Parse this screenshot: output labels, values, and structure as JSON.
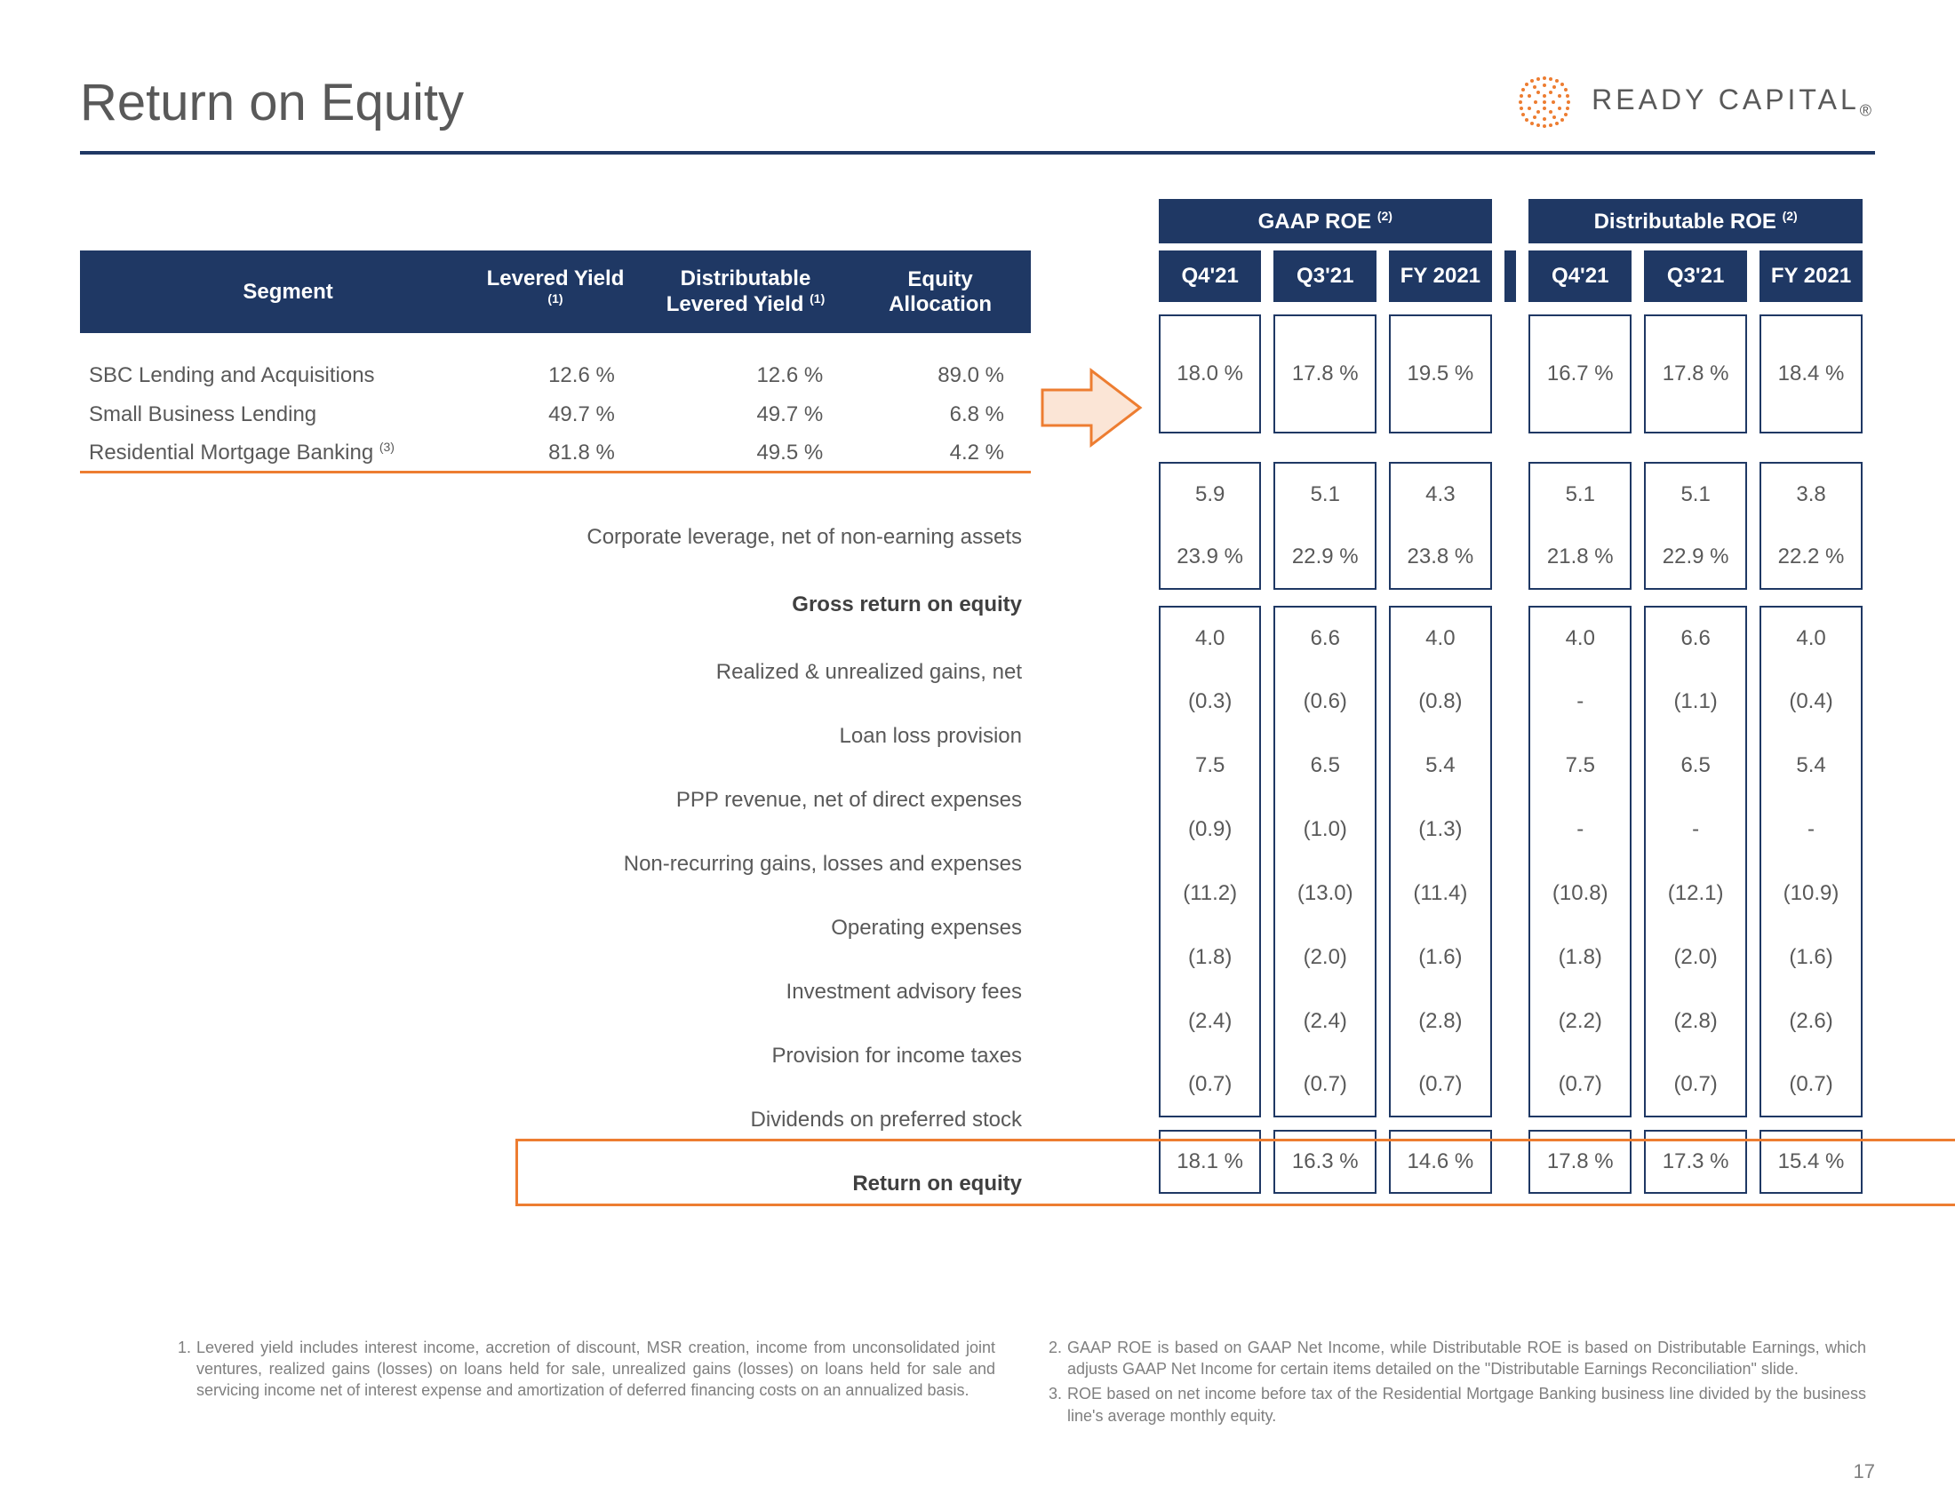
{
  "title": "Return on Equity",
  "logo_text": "READY CAPITAL",
  "logo_color": "#ed7d31",
  "page_number": "17",
  "left_headers": {
    "segment": "Segment",
    "lev_yield": "Levered Yield",
    "dist_lev_yield": "Distributable Levered Yield",
    "eq_alloc": "Equity Allocation",
    "sup1": "(1)"
  },
  "segments": [
    {
      "label": "SBC Lending and Acquisitions",
      "lev": "12.6 %",
      "dlev": "12.6 %",
      "eq": "89.0 %"
    },
    {
      "label": "Small Business Lending",
      "lev": "49.7 %",
      "dlev": "49.7 %",
      "eq": "6.8 %"
    },
    {
      "label": "Residential Mortgage Banking",
      "sup": "(3)",
      "lev": "81.8 %",
      "dlev": "49.5 %",
      "eq": "4.2 %"
    }
  ],
  "lines": [
    {
      "label": "Corporate leverage, net of non-earning assets",
      "bold": false
    },
    {
      "label": "Gross return on equity",
      "bold": true
    },
    {
      "label": "Realized & unrealized gains, net",
      "bold": false
    },
    {
      "label": "Loan loss provision",
      "bold": false
    },
    {
      "label": "PPP revenue, net of direct expenses",
      "bold": false
    },
    {
      "label": "Non-recurring gains, losses and expenses",
      "bold": false
    },
    {
      "label": "Operating expenses",
      "bold": false
    },
    {
      "label": "Investment advisory fees",
      "bold": false
    },
    {
      "label": "Provision for income taxes",
      "bold": false
    },
    {
      "label": "Dividends on preferred stock",
      "bold": false
    },
    {
      "label": "Return on equity",
      "bold": true
    }
  ],
  "groups": {
    "gaap": "GAAP ROE",
    "dist": "Distributable ROE",
    "sup2": "(2)"
  },
  "periods": [
    "Q4'21",
    "Q3'21",
    "FY 2021",
    "Q4'21",
    "Q3'21",
    "FY 2021"
  ],
  "data_rows": [
    [
      "18.0 %",
      "17.8 %",
      "19.5 %",
      "16.7 %",
      "17.8 %",
      "18.4 %"
    ],
    [
      "5.9",
      "5.1",
      "4.3",
      "5.1",
      "5.1",
      "3.8"
    ],
    [
      "23.9 %",
      "22.9 %",
      "23.8 %",
      "21.8 %",
      "22.9 %",
      "22.2 %"
    ],
    [
      "4.0",
      "6.6",
      "4.0",
      "4.0",
      "6.6",
      "4.0"
    ],
    [
      "(0.3)",
      "(0.6)",
      "(0.8)",
      "-",
      "(1.1)",
      "(0.4)"
    ],
    [
      "7.5",
      "6.5",
      "5.4",
      "7.5",
      "6.5",
      "5.4"
    ],
    [
      "(0.9)",
      "(1.0)",
      "(1.3)",
      "-",
      "-",
      "-"
    ],
    [
      "(11.2)",
      "(13.0)",
      "(11.4)",
      "(10.8)",
      "(12.1)",
      "(10.9)"
    ],
    [
      "(1.8)",
      "(2.0)",
      "(1.6)",
      "(1.8)",
      "(2.0)",
      "(1.6)"
    ],
    [
      "(2.4)",
      "(2.4)",
      "(2.8)",
      "(2.2)",
      "(2.8)",
      "(2.6)"
    ],
    [
      "(0.7)",
      "(0.7)",
      "(0.7)",
      "(0.7)",
      "(0.7)",
      "(0.7)"
    ],
    [
      "18.1 %",
      "16.3 %",
      "14.6 %",
      "17.8 %",
      "17.3 %",
      "15.4 %"
    ]
  ],
  "footnotes": {
    "f1": "Levered yield includes interest income, accretion of discount, MSR creation, income from unconsolidated joint ventures, realized gains (losses) on loans held for sale, unrealized gains (losses) on loans held for sale and servicing income net of interest expense and amortization of deferred financing costs on an annualized basis.",
    "f2": "GAAP ROE is based on GAAP Net Income, while Distributable ROE is based on Distributable Earnings, which adjusts GAAP Net Income for certain items detailed on the \"Distributable Earnings Reconciliation\" slide.",
    "f3": "ROE based on net income before tax of the Residential Mortgage Banking business line divided by the business line's average monthly equity."
  },
  "colors": {
    "navy": "#1f3864",
    "orange": "#ed7d31",
    "text_gray": "#595959",
    "foot_gray": "#7f7f7f"
  }
}
